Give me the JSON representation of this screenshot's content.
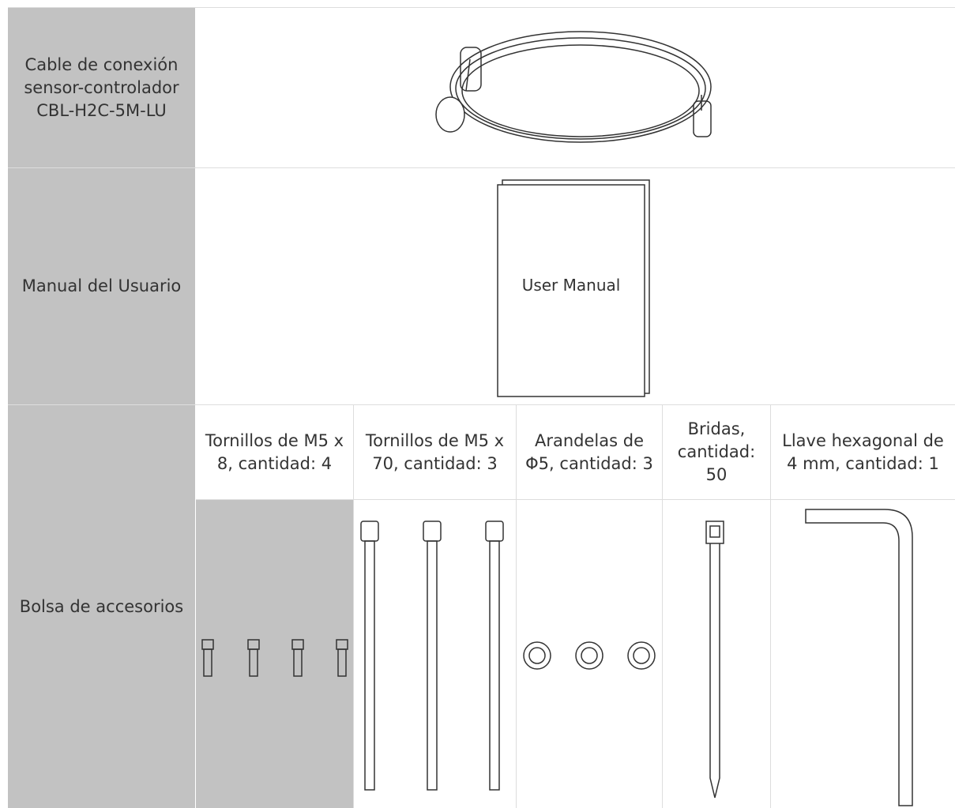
{
  "table": {
    "rows": [
      {
        "label": "Cable de conexión sensor-controlador CBL-H2C-5M-LU"
      },
      {
        "label": "Manual del Usuario",
        "image_text": "User Manual"
      },
      {
        "label": "Bolsa de accesorios",
        "items": [
          "Tornillos de M5 x 8, cantidad: 4",
          "Tornillos de M5 x 70, cantidad: 3",
          "Arandelas de Φ5, cantidad: 3",
          "Bridas, cantidad: 50",
          "Llave hexagonal de 4 mm, cantidad: 1"
        ]
      }
    ]
  }
}
